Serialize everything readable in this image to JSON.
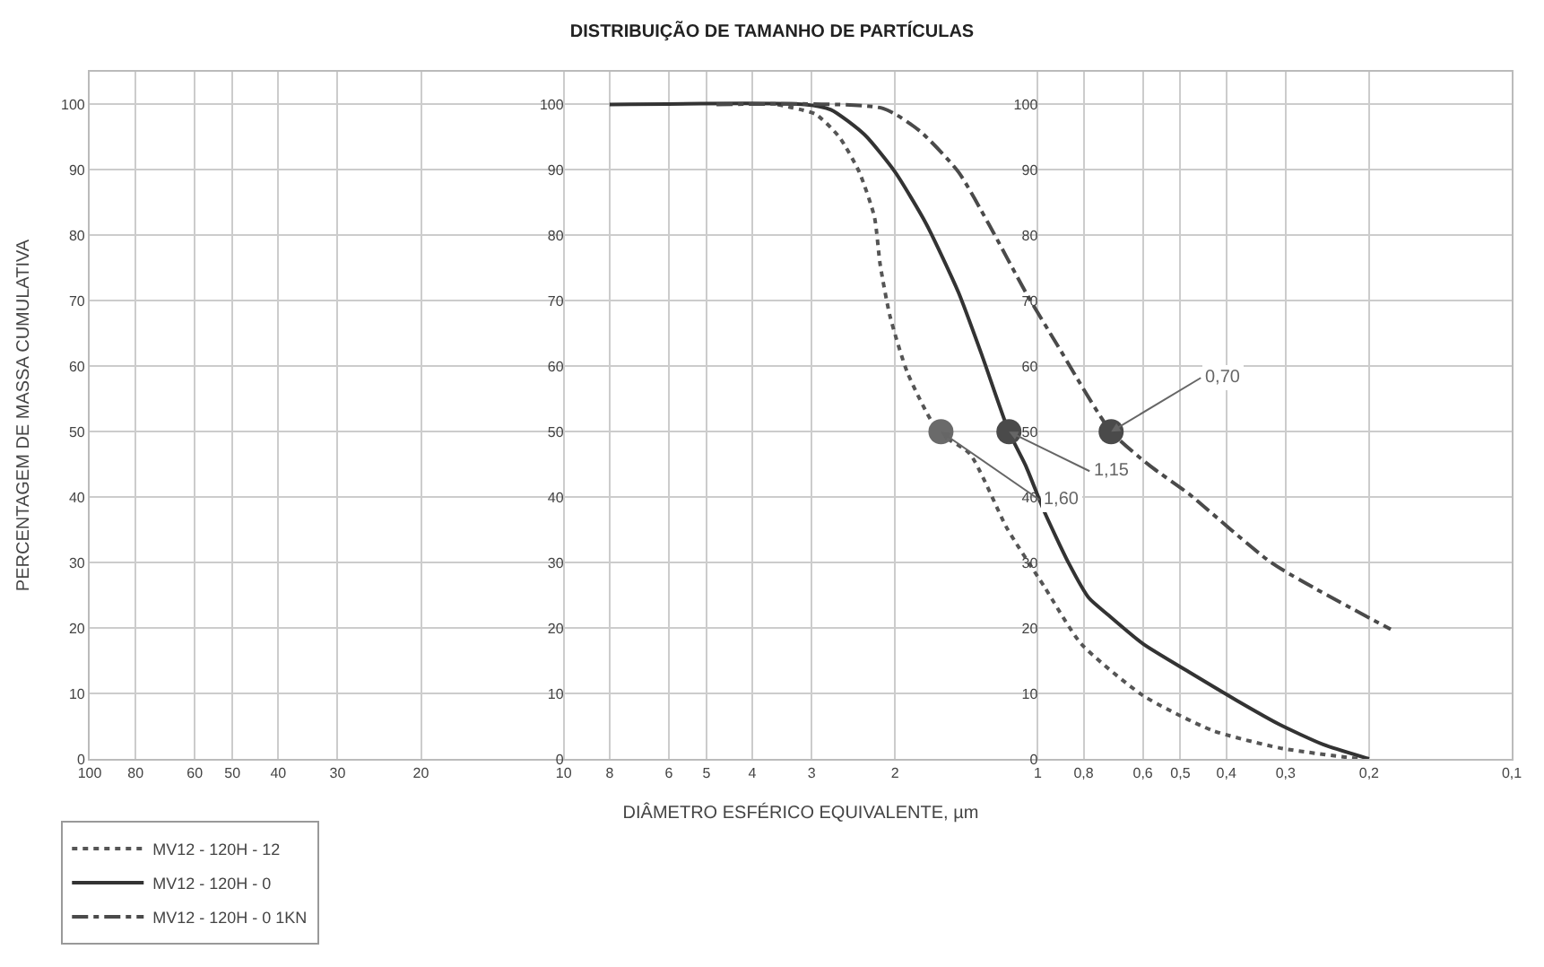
{
  "chart_data": {
    "type": "line",
    "title": "DISTRIBUIÇÃO DE TAMANHO DE PARTÍCULAS",
    "xlabel": "DIÂMETRO ESFÉRICO EQUIVALENTE, µm",
    "ylabel": "PERCENTAGEM DE MASSA CUMULATIVA",
    "log": "x",
    "xlim": [
      100,
      0.1
    ],
    "ylim": [
      0,
      105
    ],
    "xticks": [
      100,
      80,
      60,
      50,
      40,
      30,
      20,
      10,
      8,
      6,
      5,
      4,
      3,
      2,
      1,
      {
        "value": 0.8,
        "label": "0,8"
      },
      {
        "value": 0.6,
        "label": "0,6"
      },
      {
        "value": 0.5,
        "label": "0,5"
      },
      {
        "value": 0.4,
        "label": "0,4"
      },
      {
        "value": 0.3,
        "label": "0,3"
      },
      {
        "value": 0.2,
        "label": "0,2"
      },
      {
        "value": 0.1,
        "label": "0,1"
      }
    ],
    "yticks": [
      0,
      10,
      20,
      30,
      40,
      50,
      60,
      70,
      80,
      90,
      100
    ],
    "y2lim": [
      0,
      105
    ],
    "y2ticks": [
      0,
      10,
      20,
      30,
      40,
      50,
      60,
      70,
      80,
      90,
      100
    ],
    "y3lim": [
      0,
      105
    ],
    "y3ticks": [
      0,
      10,
      20,
      30,
      40,
      50,
      60,
      70,
      80,
      90,
      100
    ],
    "grid": true,
    "legend": "bottom left",
    "series": [
      {
        "name": "MV12 - 120H - 12",
        "color": "#555555",
        "line_style": "dotted",
        "x": [
          3.54,
          2.94,
          2.62,
          2.38,
          2.21,
          2.15,
          2.05,
          1.88,
          1.62,
          1.39,
          1.16,
          0.97,
          0.81,
          0.6,
          0.43,
          0.31,
          0.21
        ],
        "values": [
          100,
          98.5,
          95,
          89.7,
          82.8,
          75.6,
          67.7,
          58.9,
          50,
          46.6,
          35.2,
          26.4,
          17.6,
          9.7,
          4.4,
          1.7,
          0
        ]
      },
      {
        "name": "MV12 - 120H - 0",
        "color": "#333333",
        "line_style": "solid",
        "x": [
          8,
          3.1,
          2.73,
          2.32,
          2.0,
          1.72,
          1.47,
          1.31,
          1.15,
          1.06,
          0.97,
          0.86,
          0.78,
          0.71,
          0.6,
          0.48,
          0.38,
          0.31,
          0.25,
          0.2
        ],
        "values": [
          100,
          100,
          99.2,
          95.4,
          89.7,
          81.8,
          71.3,
          61.6,
          50,
          44.8,
          37.9,
          29.9,
          24.6,
          22,
          17.6,
          13.3,
          8.9,
          5.3,
          2.2,
          0
        ]
      },
      {
        "name": "MV12 - 120H - 0 1KN",
        "color": "#4a4a4a",
        "line_style": "dashdot",
        "x": [
          4.76,
          2.12,
          1.77,
          1.47,
          1.27,
          1.06,
          0.91,
          0.7,
          0.58,
          0.48,
          0.32,
          0.18
        ],
        "values": [
          100,
          99.4,
          95.9,
          89.7,
          81.8,
          71.3,
          63.3,
          50,
          44.8,
          40.5,
          29.9,
          19.8
        ]
      },
      {
        "type": "scatter",
        "marker": "circle",
        "x": [
          1.6,
          1.15,
          0.7
        ],
        "values": [
          50,
          50,
          50
        ],
        "colors": [
          "#6a6a6a",
          "#4a4a4a",
          "#4a4a4a"
        ]
      }
    ],
    "annotations": [
      {
        "text": "1,60",
        "x": 1.6,
        "y": 50
      },
      {
        "text": "1,15",
        "x": 1.15,
        "y": 50
      },
      {
        "text": "0,70",
        "x": 0.7,
        "y": 50
      }
    ]
  }
}
